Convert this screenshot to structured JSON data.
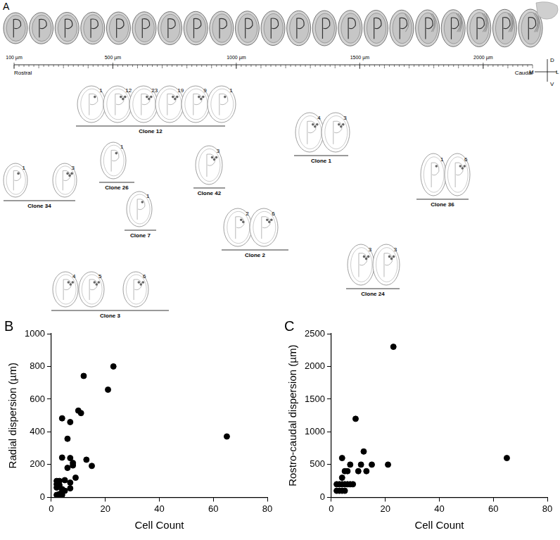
{
  "panel_a": {
    "label": "A",
    "ruler": {
      "range": [
        100,
        2200
      ],
      "ticks": [
        {
          "value": 100,
          "label": "100 µm"
        },
        {
          "value": 500,
          "label": "500 µm"
        },
        {
          "value": 1000,
          "label": "1000 µm"
        },
        {
          "value": 1500,
          "label": "1500 µm"
        },
        {
          "value": 2000,
          "label": "2000 µm"
        }
      ]
    },
    "rostral": "Rostral",
    "caudal": "Caudal",
    "orientation": {
      "dorsal": "D",
      "ventral": "V",
      "medial": "M",
      "lateral": "L"
    },
    "clones": [
      {
        "name": "Clone 12",
        "cell_counts": [
          1,
          12,
          23,
          19,
          9,
          1
        ]
      },
      {
        "name": "Clone 1",
        "cell_counts": [
          4,
          3
        ]
      },
      {
        "name": "Clone 34",
        "cell_counts": [
          1,
          3
        ]
      },
      {
        "name": "Clone 26",
        "cell_counts": [
          1
        ]
      },
      {
        "name": "Clone 42",
        "cell_counts": [
          3
        ]
      },
      {
        "name": "Clone 36",
        "cell_counts": [
          1,
          6
        ]
      },
      {
        "name": "Clone 7",
        "cell_counts": [
          1
        ]
      },
      {
        "name": "Clone 2",
        "cell_counts": [
          2,
          6
        ]
      },
      {
        "name": "Clone 24",
        "cell_counts": [
          3,
          3
        ]
      },
      {
        "name": "Clone 3",
        "cell_counts": [
          4,
          5,
          6
        ]
      }
    ]
  },
  "chart_data": [
    {
      "panel": "B",
      "type": "scatter",
      "x_label": "Cell Count",
      "y_label": "Radial dispersion (µm)",
      "x": [
        23,
        12,
        21,
        10,
        11,
        4,
        7,
        6,
        65,
        4,
        7,
        13,
        8,
        8,
        15,
        6,
        9,
        5,
        3,
        2,
        2,
        3,
        7,
        2,
        4,
        5,
        7,
        3,
        4,
        2,
        3,
        4
      ],
      "values": [
        800,
        742,
        658,
        530,
        515,
        483,
        460,
        358,
        372,
        243,
        240,
        230,
        210,
        195,
        192,
        180,
        120,
        105,
        100,
        100,
        80,
        75,
        90,
        60,
        50,
        40,
        55,
        20,
        15,
        15,
        10,
        30
      ],
      "xlim": [
        0,
        80
      ],
      "xticks": [
        0,
        20,
        40,
        60,
        80
      ],
      "ylim": [
        0,
        1000
      ],
      "yticks": [
        0,
        200,
        400,
        600,
        800,
        1000
      ],
      "color": "#000000",
      "marker": "circle",
      "grid": false
    },
    {
      "panel": "C",
      "type": "scatter",
      "x_label": "Cell Count",
      "y_label": "Rostro-caudal dispersion (µm)",
      "x": [
        23,
        9,
        12,
        4,
        11,
        15,
        21,
        65,
        7,
        10,
        13,
        5,
        6,
        4,
        8,
        7,
        6,
        5,
        4,
        3,
        2,
        2,
        3,
        4,
        5
      ],
      "values": [
        2300,
        1200,
        700,
        600,
        500,
        500,
        500,
        600,
        500,
        400,
        400,
        400,
        400,
        300,
        200,
        200,
        200,
        200,
        200,
        200,
        200,
        100,
        100,
        100,
        100
      ],
      "xlim": [
        0,
        80
      ],
      "xticks": [
        0,
        20,
        40,
        60,
        80
      ],
      "ylim": [
        0,
        2500
      ],
      "yticks": [
        0,
        500,
        1000,
        1500,
        2000,
        2500
      ],
      "color": "#000000",
      "marker": "circle",
      "grid": false
    }
  ]
}
